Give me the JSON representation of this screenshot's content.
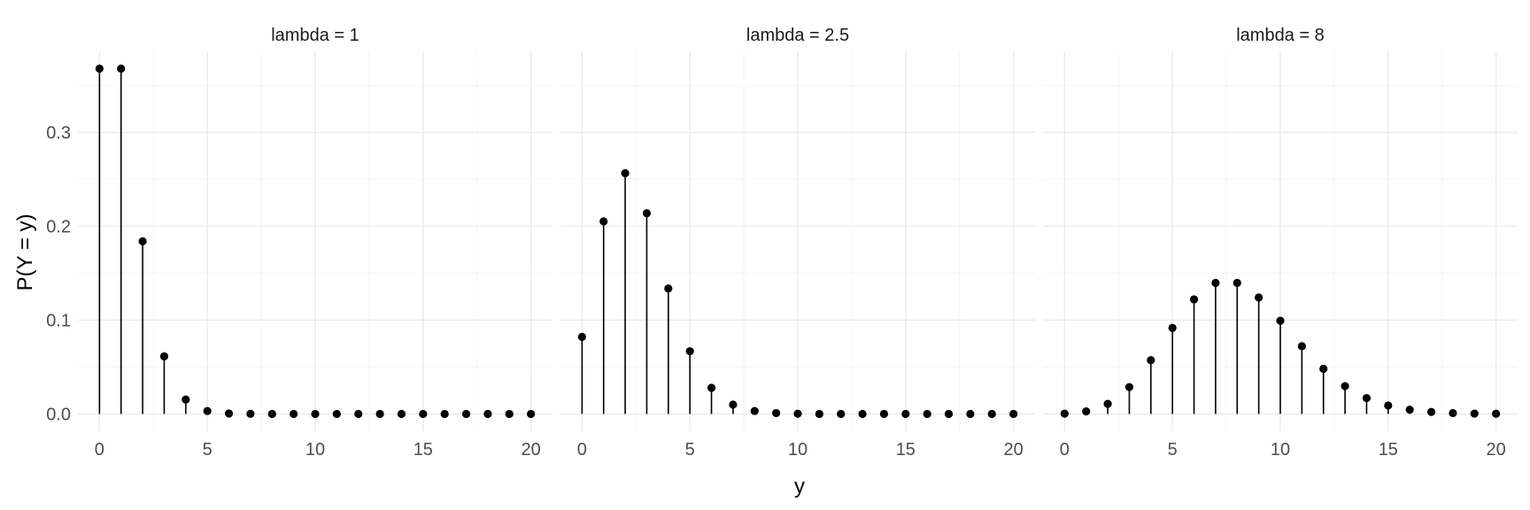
{
  "chart_data": {
    "type": "scatter",
    "style": "lollipop stems with points",
    "xlabel": "y",
    "ylabel": "P(Y = y)",
    "xlim": [
      0,
      20
    ],
    "ylim": [
      0,
      0.3679
    ],
    "x_ticks": [
      0,
      5,
      10,
      15,
      20
    ],
    "x_tick_labels": [
      "0",
      "5",
      "10",
      "15",
      "20"
    ],
    "y_ticks": [
      0,
      0.1,
      0.2,
      0.3
    ],
    "y_tick_labels": [
      "0.0",
      "0.1",
      "0.2",
      "0.3"
    ],
    "grid": true,
    "point_color": "#000000",
    "x": [
      0,
      1,
      2,
      3,
      4,
      5,
      6,
      7,
      8,
      9,
      10,
      11,
      12,
      13,
      14,
      15,
      16,
      17,
      18,
      19,
      20
    ],
    "panels": [
      {
        "label": "lambda = 1",
        "values": [
          0.3679,
          0.3679,
          0.1839,
          0.0613,
          0.0153,
          0.0031,
          0.0005,
          0.0001,
          0,
          0,
          0,
          0,
          0,
          0,
          0,
          0,
          0,
          0,
          0,
          0,
          0
        ]
      },
      {
        "label": "lambda = 2.5",
        "values": [
          0.0821,
          0.2052,
          0.2565,
          0.2138,
          0.1336,
          0.0668,
          0.0278,
          0.0099,
          0.0031,
          0.0009,
          0.0002,
          0,
          0,
          0,
          0,
          0,
          0,
          0,
          0,
          0,
          0
        ]
      },
      {
        "label": "lambda = 8",
        "values": [
          0.0003,
          0.0027,
          0.0107,
          0.0286,
          0.0573,
          0.0916,
          0.1221,
          0.1396,
          0.1396,
          0.1241,
          0.0993,
          0.0722,
          0.0481,
          0.0296,
          0.0169,
          0.009,
          0.0045,
          0.0021,
          0.0009,
          0.0004,
          0.0002
        ]
      }
    ]
  }
}
